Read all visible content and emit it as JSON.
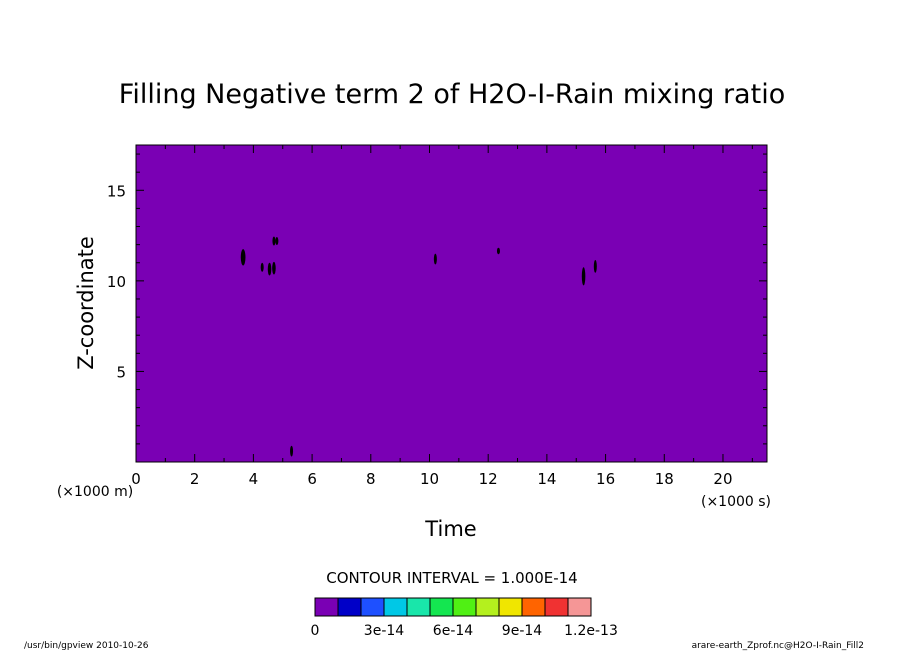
{
  "chart_data": {
    "type": "heatmap",
    "title": "Filling Negative term 2 of H2O-I-Rain mixing ratio",
    "xlabel": "Time",
    "ylabel": "Z-coordinate",
    "x_unit": "(×1000 s)",
    "y_unit": "(×1000 m)",
    "xlim": [
      0,
      21.5
    ],
    "ylim": [
      0,
      17.5
    ],
    "x_ticks": [
      "0",
      "2",
      "4",
      "6",
      "8",
      "10",
      "12",
      "14",
      "16",
      "18",
      "20"
    ],
    "y_ticks": [
      "5",
      "10",
      "15"
    ],
    "background_level": 0,
    "contour_interval_text": "CONTOUR INTERVAL = 1.000E-14",
    "colorbar": {
      "colors": [
        "#7a00b4",
        "#0000c8",
        "#1e50ff",
        "#00c8e6",
        "#19e6aa",
        "#14e650",
        "#50f014",
        "#b4f01e",
        "#f0e600",
        "#ff6400",
        "#f03232",
        "#f59696"
      ],
      "labels": [
        "0",
        "3e-14",
        "6e-14",
        "9e-14",
        "1.2e-13"
      ]
    },
    "features": [
      {
        "x": 3.65,
        "y": 11.3,
        "w": 0.08,
        "h": 0.45
      },
      {
        "x": 4.3,
        "y": 10.75,
        "w": 0.04,
        "h": 0.25
      },
      {
        "x": 4.55,
        "y": 10.65,
        "w": 0.06,
        "h": 0.35
      },
      {
        "x": 4.7,
        "y": 10.7,
        "w": 0.06,
        "h": 0.35
      },
      {
        "x": 4.7,
        "y": 12.2,
        "w": 0.05,
        "h": 0.25
      },
      {
        "x": 4.8,
        "y": 12.2,
        "w": 0.04,
        "h": 0.22
      },
      {
        "x": 5.3,
        "y": 0.6,
        "w": 0.04,
        "h": 0.3
      },
      {
        "x": 10.2,
        "y": 11.2,
        "w": 0.04,
        "h": 0.3
      },
      {
        "x": 12.35,
        "y": 11.65,
        "w": 0.03,
        "h": 0.18
      },
      {
        "x": 15.25,
        "y": 10.25,
        "w": 0.06,
        "h": 0.5
      },
      {
        "x": 15.65,
        "y": 10.8,
        "w": 0.04,
        "h": 0.35
      }
    ]
  },
  "footer": {
    "left": "/usr/bin/gpview  2010-10-26",
    "right": "arare-earth_Zprof.nc@H2O-I-Rain_Fill2"
  }
}
